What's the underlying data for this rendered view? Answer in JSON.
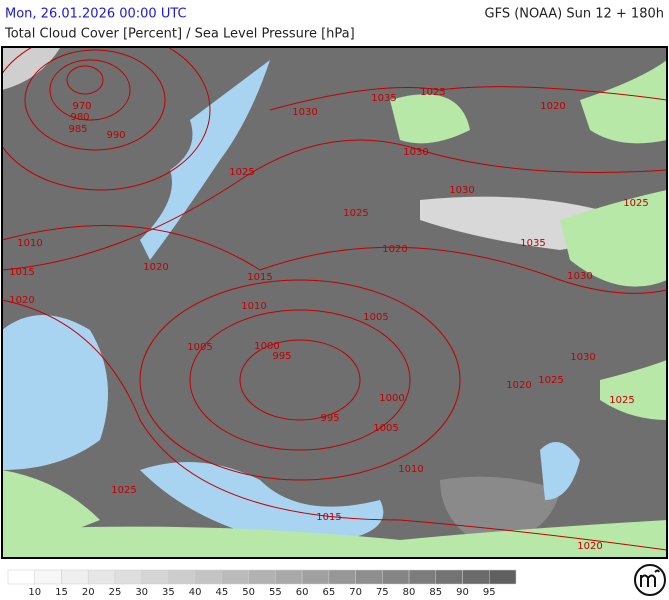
{
  "header": {
    "valid_time": "Mon, 26.01.2026 00:00 UTC",
    "model_run": "GFS (NOAA) Sun 12 + 180h",
    "title": "Total Cloud Cover [Percent] / Sea Level Pressure [hPa]"
  },
  "isobar_labels": [
    970,
    980,
    985,
    990,
    1030,
    1035,
    1025,
    1020,
    1025,
    1030,
    1030,
    1025,
    1025,
    1010,
    1020,
    1035,
    1020,
    1015,
    1015,
    1030,
    1020,
    1010,
    1005,
    1005,
    1000,
    995,
    1030,
    1025,
    1020,
    1000,
    1025,
    995,
    1005,
    1010,
    1025,
    1015,
    1020
  ],
  "legend": {
    "labels": [
      10,
      15,
      20,
      25,
      30,
      35,
      40,
      45,
      50,
      55,
      60,
      65,
      70,
      75,
      80,
      85,
      90,
      95
    ],
    "colors": [
      "#ffffff",
      "#f7f7f7",
      "#efefef",
      "#e6e6e6",
      "#dedede",
      "#d5d5d5",
      "#cdcdcd",
      "#c4c4c4",
      "#bbbbbb",
      "#b2b2b2",
      "#a9a9a9",
      "#a0a0a0",
      "#979797",
      "#8e8e8e",
      "#858585",
      "#7c7c7c",
      "#737373",
      "#6a6a6a",
      "#606060"
    ]
  }
}
